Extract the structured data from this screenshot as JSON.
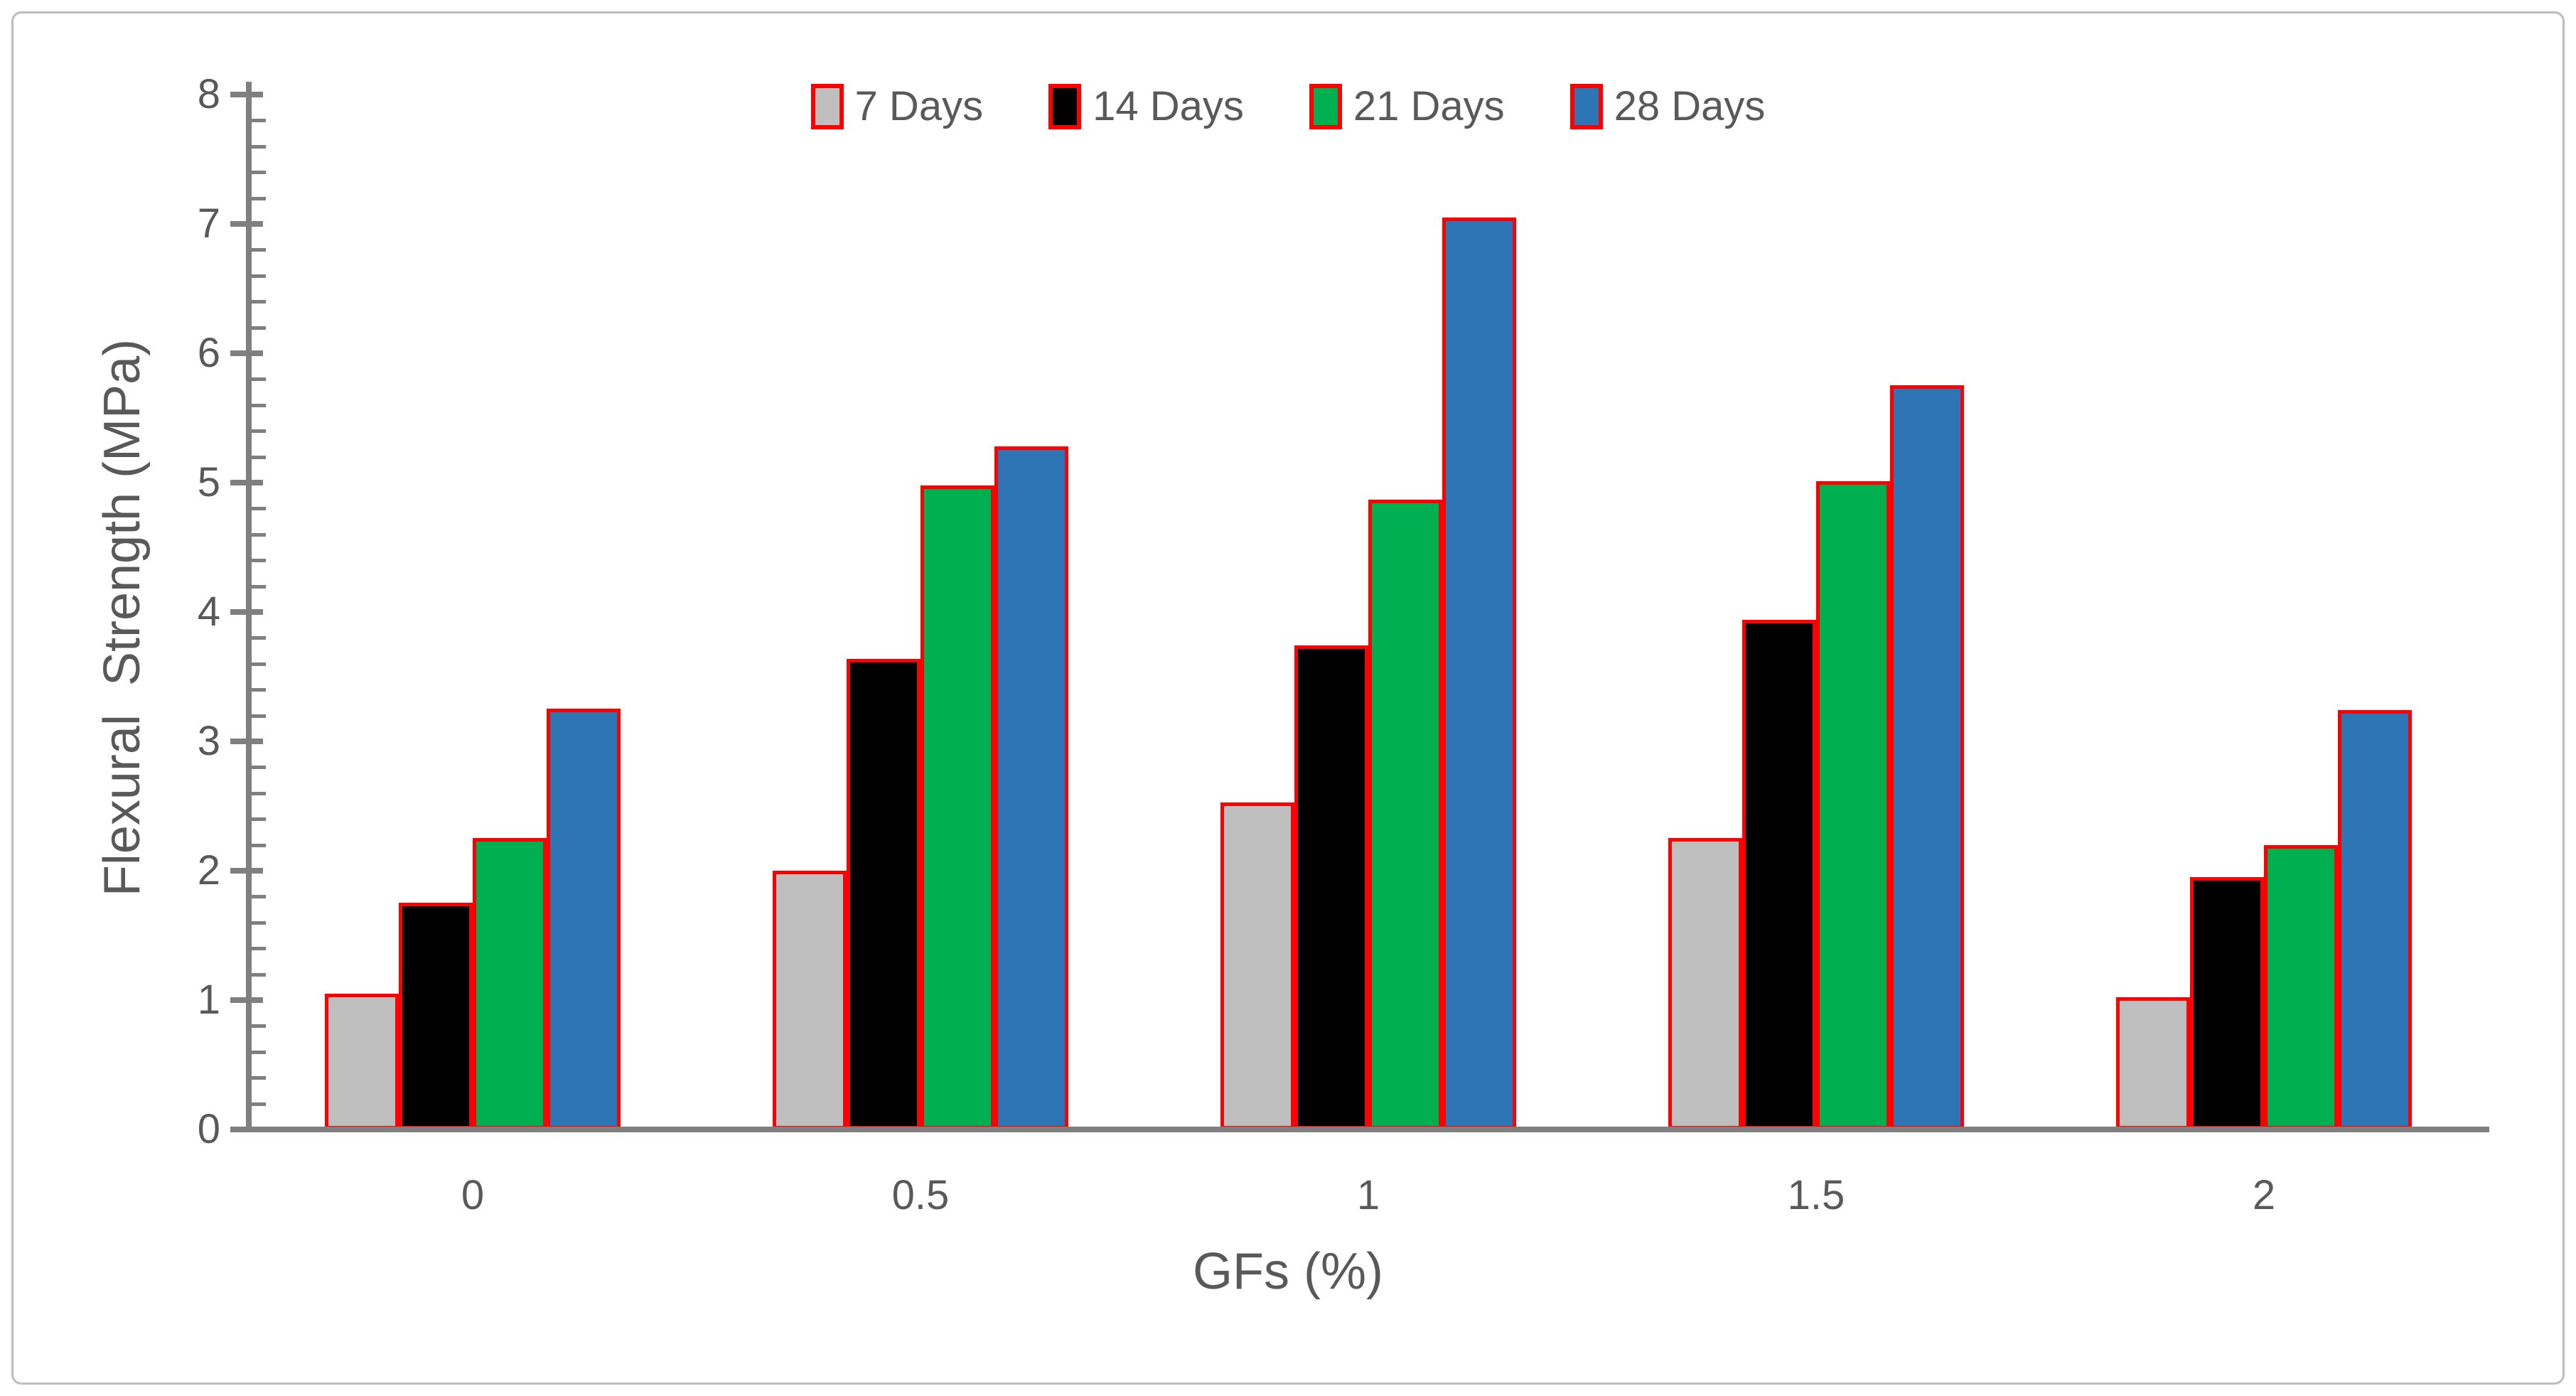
{
  "chart_data": {
    "type": "bar",
    "title": "",
    "xlabel": "GFs (%)",
    "ylabel": "Flexural  Strength (MPa)",
    "categories": [
      "0",
      "0.5",
      "1",
      "1.5",
      "2"
    ],
    "series": [
      {
        "name": "7 Days",
        "color": "#bfbfbf",
        "values": [
          1.05,
          2.0,
          2.53,
          2.25,
          1.02
        ]
      },
      {
        "name": "14 Days",
        "color": "#000000",
        "values": [
          1.75,
          3.64,
          3.74,
          3.94,
          1.95
        ]
      },
      {
        "name": "21 Days",
        "color": "#00b050",
        "values": [
          2.25,
          4.98,
          4.87,
          5.01,
          2.2
        ]
      },
      {
        "name": "28 Days",
        "color": "#2e75b6",
        "values": [
          3.25,
          5.28,
          7.05,
          5.75,
          3.24
        ]
      }
    ],
    "ylim": [
      0,
      8
    ],
    "y_major_step": 1,
    "y_minor_step": 0.2,
    "y_tick_labels": [
      "0",
      "1",
      "2",
      "3",
      "4",
      "5",
      "6",
      "7",
      "8"
    ],
    "grid": false,
    "legend_position": "top-center",
    "bar_border_color": "#ff0000"
  },
  "style": {
    "axis_color": "#7f7f7f",
    "text_color": "#595959",
    "frame_color": "#bdbdbd",
    "background": "#ffffff"
  }
}
